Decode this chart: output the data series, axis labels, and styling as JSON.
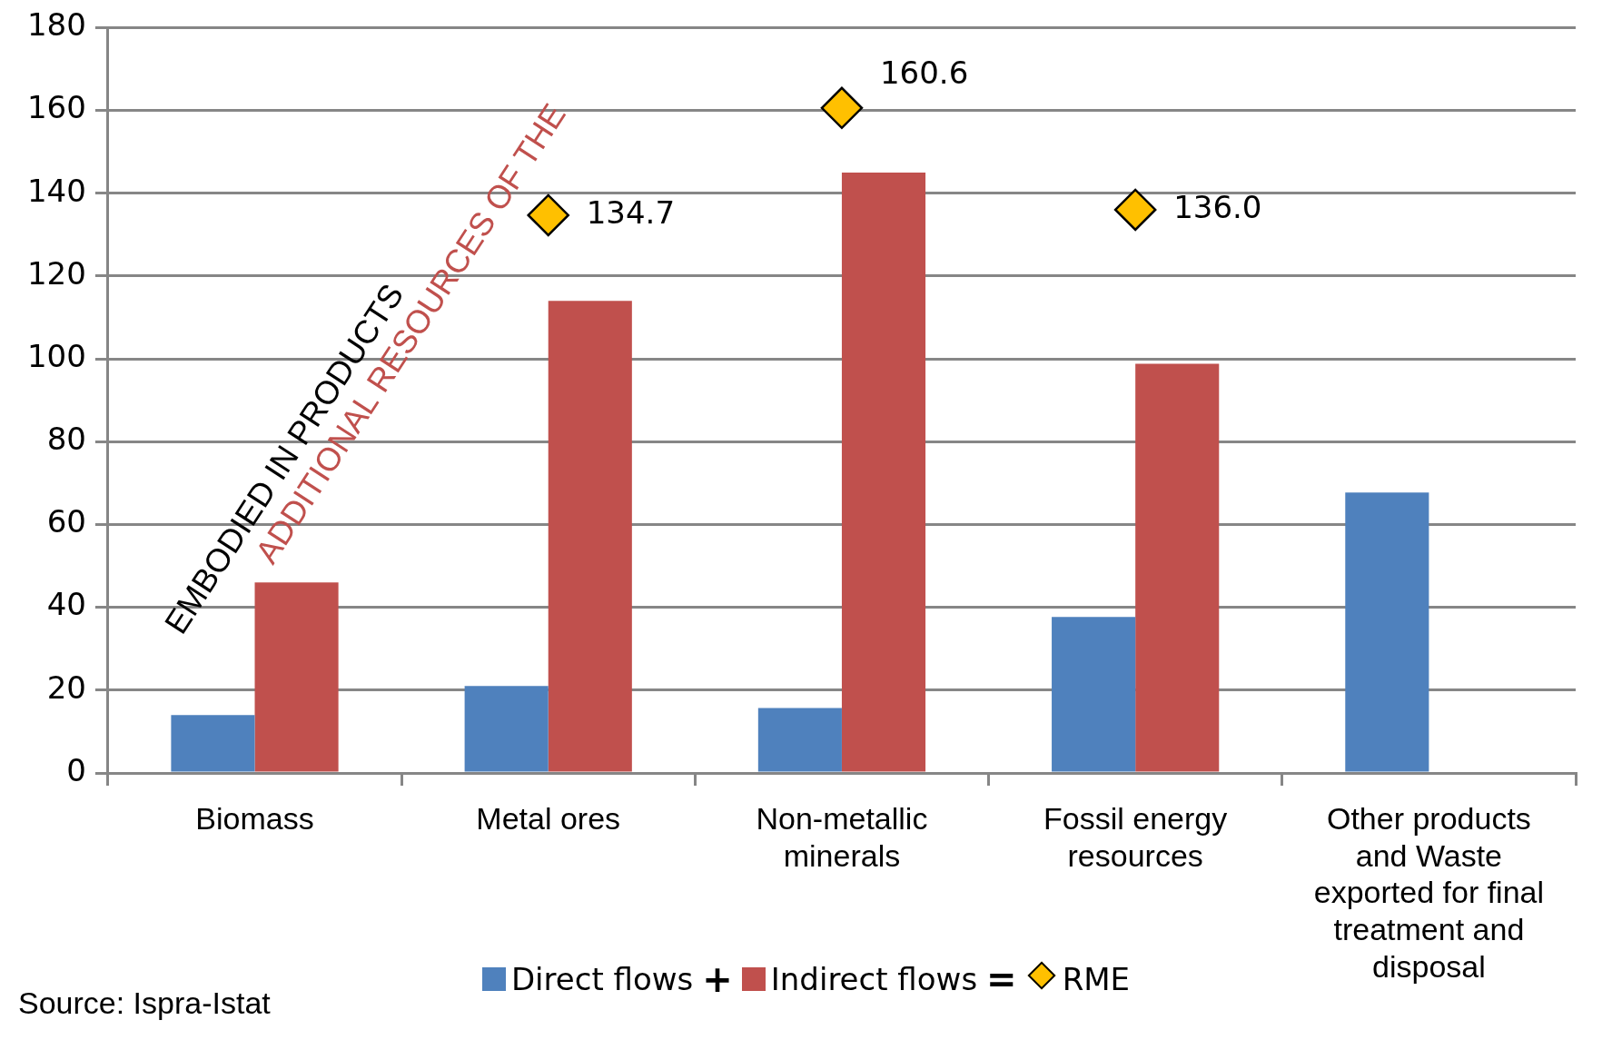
{
  "chart_data": {
    "type": "bar",
    "categories": [
      "Biomass",
      "Metal ores",
      "Non-metallic minerals",
      "Fossil energy resources",
      "Other products and Waste exported  for final treatment and disposal"
    ],
    "series": [
      {
        "name": "Direct flows",
        "color": "#4f81bd",
        "values": [
          14,
          21,
          15.7,
          37.7,
          67.7
        ]
      },
      {
        "name": "Indirect flows",
        "color": "#c0504d",
        "values": [
          46,
          114,
          145,
          98.8,
          null
        ]
      },
      {
        "name": "RME",
        "type": "scatter",
        "color": "#ffc000",
        "values": [
          null,
          134.7,
          160.6,
          136.0,
          null
        ],
        "value_labels": [
          null,
          "134.7",
          "160.6",
          "136.0",
          null
        ]
      }
    ],
    "marker": "diamond",
    "ylim": [
      0,
      180
    ],
    "yticks": [
      0,
      20,
      40,
      60,
      80,
      100,
      120,
      140,
      160,
      180
    ],
    "grid": "y",
    "legend": "bottom",
    "annotations": [
      "EMBODIED IN PRODUCTS",
      "ADDITIONAL RESOURCES OF THE",
      "Source: Ispra-Istat",
      "+",
      "="
    ]
  }
}
